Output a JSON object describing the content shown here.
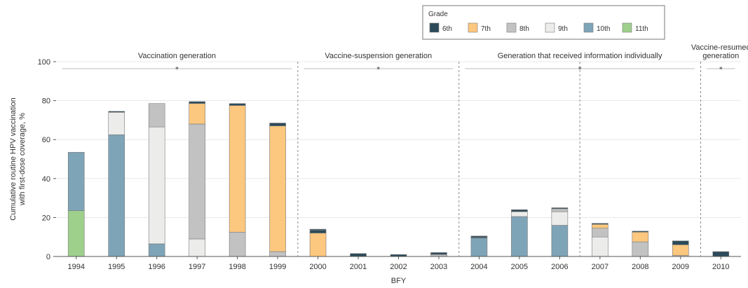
{
  "chart_data": {
    "type": "bar",
    "stacked": true,
    "xlabel": "BFY",
    "ylabel_lines": [
      "Cumulative routine HPV vaccination",
      "with first-dose coverage, %"
    ],
    "ylim": [
      0,
      100
    ],
    "yticks": [
      0,
      20,
      40,
      60,
      80,
      100
    ],
    "grid": true,
    "legend": {
      "title": "Grade",
      "placement": "top",
      "entries": [
        {
          "label": "6th",
          "color": "#2c4a5a"
        },
        {
          "label": "7th",
          "color": "#fcc77e"
        },
        {
          "label": "8th",
          "color": "#c2c2c2"
        },
        {
          "label": "9th",
          "color": "#ececea"
        },
        {
          "label": "10th",
          "color": "#7ea4b7"
        },
        {
          "label": "11th",
          "color": "#9ed08c"
        }
      ]
    },
    "categories": [
      "1994",
      "1995",
      "1996",
      "1997",
      "1998",
      "1999",
      "2000",
      "2001",
      "2002",
      "2003",
      "2004",
      "2005",
      "2006",
      "2007",
      "2008",
      "2009",
      "2010"
    ],
    "series": [
      {
        "name": "11th",
        "color": "#9ed08c",
        "values": [
          23.5,
          0,
          0,
          0,
          0,
          0,
          0,
          0,
          0,
          0,
          0,
          0,
          0,
          0,
          0,
          0,
          0
        ]
      },
      {
        "name": "10th",
        "color": "#7ea4b7",
        "values": [
          30,
          62.5,
          6.5,
          0,
          0,
          0,
          0,
          0,
          0,
          0,
          9.5,
          20.5,
          16,
          0,
          0,
          0,
          0
        ]
      },
      {
        "name": "9th",
        "color": "#ececea",
        "values": [
          0,
          11.5,
          60,
          9,
          0,
          0,
          0,
          0,
          0,
          0,
          0,
          2.5,
          7,
          10,
          0,
          0,
          0
        ]
      },
      {
        "name": "8th",
        "color": "#c2c2c2",
        "values": [
          0,
          0,
          12,
          59,
          12.5,
          2.5,
          0,
          0,
          0,
          1,
          0,
          0,
          1.5,
          4.5,
          7.5,
          0.5,
          0
        ]
      },
      {
        "name": "7th",
        "color": "#fcc77e",
        "values": [
          0,
          0,
          0,
          10.5,
          65,
          64.5,
          12,
          0,
          0,
          0,
          0,
          0,
          0,
          2,
          5,
          5.5,
          0
        ]
      },
      {
        "name": "6th",
        "color": "#2c4a5a",
        "values": [
          0,
          0,
          0,
          0,
          1,
          1.5,
          1.5,
          1.5,
          1,
          1,
          0.5,
          1,
          0.5,
          0.5,
          0.5,
          2,
          2.5
        ]
      },
      {
        "name": "6th-base",
        "color": "#2c4a5a",
        "values": [
          0,
          0.5,
          0,
          1,
          0,
          0,
          0.5,
          0,
          0,
          0,
          0.5,
          0,
          0,
          0,
          0,
          0,
          0
        ]
      }
    ],
    "generations": [
      {
        "label": "Vaccination generation",
        "from": "1994",
        "to": "1999",
        "mark": "*"
      },
      {
        "label": "Vaccine-suspension generation",
        "from": "2000",
        "to": "2003",
        "mark": "*"
      },
      {
        "label": "Generation that received information individually",
        "from": "2004",
        "to": "2009",
        "mark": "*"
      },
      {
        "label_lines": [
          "Vaccine-resumed",
          "generation"
        ],
        "from": "2010",
        "to": "2010",
        "mark": "*"
      }
    ]
  }
}
